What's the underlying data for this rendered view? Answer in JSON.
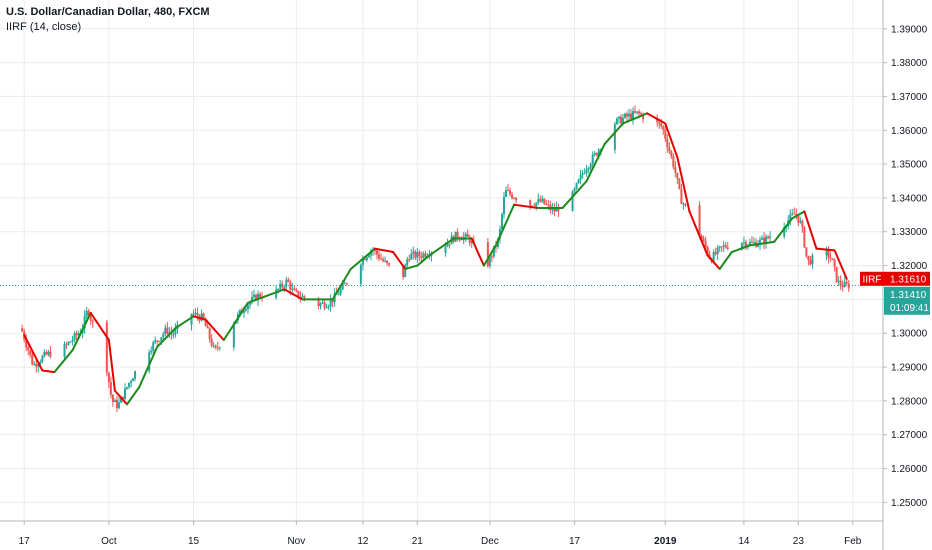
{
  "header": {
    "title": "U.S. Dollar/Canadian Dollar, 480, FXCM",
    "indicator": "IIRF (14, close)"
  },
  "colors": {
    "up": "#26a69a",
    "down": "#ef5350",
    "iirf_up": "#1b8a1b",
    "iirf_down": "#e60000",
    "price_tag": "#26a69a",
    "iirf_tag": "#e60000",
    "grid": "#e9ebef"
  },
  "chart_data": {
    "type": "candlestick",
    "symbol": "U.S. Dollar/Canadian Dollar",
    "interval": "480",
    "source": "FXCM",
    "y_ticks": [
      "1.39000",
      "1.38000",
      "1.37000",
      "1.36000",
      "1.35000",
      "1.34000",
      "1.33000",
      "1.32000",
      "1.31000",
      "1.30000",
      "1.29000",
      "1.28000",
      "1.27000",
      "1.26000",
      "1.25000"
    ],
    "ylim": [
      1.2445,
      1.3985
    ],
    "x_ticks": [
      {
        "label": "17",
        "bold": false,
        "date": "2018-09-17"
      },
      {
        "label": "Oct",
        "bold": false,
        "date": "2018-10-01"
      },
      {
        "label": "15",
        "bold": false,
        "date": "2018-10-15"
      },
      {
        "label": "Nov",
        "bold": false,
        "date": "2018-11-01"
      },
      {
        "label": "12",
        "bold": false,
        "date": "2018-11-12"
      },
      {
        "label": "21",
        "bold": false,
        "date": "2018-11-21"
      },
      {
        "label": "Dec",
        "bold": false,
        "date": "2018-12-03"
      },
      {
        "label": "17",
        "bold": false,
        "date": "2018-12-17"
      },
      {
        "label": "2019",
        "bold": true,
        "date": "2019-01-01"
      },
      {
        "label": "14",
        "bold": false,
        "date": "2019-01-14"
      },
      {
        "label": "23",
        "bold": false,
        "date": "2019-01-23"
      },
      {
        "label": "Feb",
        "bold": false,
        "date": "2019-02-01"
      }
    ],
    "price_path": [
      [
        "2018-09-17",
        1.3015
      ],
      [
        "2018-09-19",
        1.2905
      ],
      [
        "2018-09-21",
        1.2935
      ],
      [
        "2018-09-24",
        1.2955
      ],
      [
        "2018-09-27",
        1.301
      ],
      [
        "2018-09-28",
        1.307
      ],
      [
        "2018-10-01",
        1.2915
      ],
      [
        "2018-10-02",
        1.28
      ],
      [
        "2018-10-03",
        1.2785
      ],
      [
        "2018-10-05",
        1.286
      ],
      [
        "2018-10-08",
        1.295
      ],
      [
        "2018-10-11",
        1.301
      ],
      [
        "2018-10-12",
        1.2995
      ],
      [
        "2018-10-15",
        1.306
      ],
      [
        "2018-10-17",
        1.3045
      ],
      [
        "2018-10-19",
        1.2945
      ],
      [
        "2018-10-22",
        1.303
      ],
      [
        "2018-10-24",
        1.308
      ],
      [
        "2018-10-26",
        1.311
      ],
      [
        "2018-10-29",
        1.312
      ],
      [
        "2018-10-31",
        1.3155
      ],
      [
        "2018-11-01",
        1.312
      ],
      [
        "2018-11-05",
        1.3085
      ],
      [
        "2018-11-07",
        1.309
      ],
      [
        "2018-11-09",
        1.313
      ],
      [
        "2018-11-12",
        1.321
      ],
      [
        "2018-11-14",
        1.325
      ],
      [
        "2018-11-16",
        1.321
      ],
      [
        "2018-11-19",
        1.316
      ],
      [
        "2018-11-20",
        1.323
      ],
      [
        "2018-11-22",
        1.323
      ],
      [
        "2018-11-26",
        1.326
      ],
      [
        "2018-11-28",
        1.329
      ],
      [
        "2018-11-30",
        1.328
      ],
      [
        "2018-12-03",
        1.32
      ],
      [
        "2018-12-05",
        1.328
      ],
      [
        "2018-12-06",
        1.342
      ],
      [
        "2018-12-10",
        1.338
      ],
      [
        "2018-12-12",
        1.339
      ],
      [
        "2018-12-14",
        1.336
      ],
      [
        "2018-12-17",
        1.34
      ],
      [
        "2018-12-19",
        1.348
      ],
      [
        "2018-12-21",
        1.353
      ],
      [
        "2018-12-24",
        1.362
      ],
      [
        "2018-12-26",
        1.364
      ],
      [
        "2018-12-28",
        1.365
      ],
      [
        "2019-01-01",
        1.361
      ],
      [
        "2019-01-03",
        1.349
      ],
      [
        "2019-01-04",
        1.34
      ],
      [
        "2019-01-07",
        1.33
      ],
      [
        "2019-01-09",
        1.322
      ],
      [
        "2019-01-11",
        1.3255
      ],
      [
        "2019-01-14",
        1.327
      ],
      [
        "2019-01-16",
        1.3265
      ],
      [
        "2019-01-18",
        1.3275
      ],
      [
        "2019-01-21",
        1.332
      ],
      [
        "2019-01-23",
        1.3355
      ],
      [
        "2019-01-24",
        1.332
      ],
      [
        "2019-01-25",
        1.321
      ],
      [
        "2019-01-28",
        1.324
      ],
      [
        "2019-01-29",
        1.322
      ],
      [
        "2019-01-30",
        1.315
      ],
      [
        "2019-01-31",
        1.3141
      ]
    ],
    "iirf_path": [
      [
        "2018-09-17",
        1.2995
      ],
      [
        "2018-09-20",
        1.289
      ],
      [
        "2018-09-22",
        1.2885
      ],
      [
        "2018-09-25",
        1.295
      ],
      [
        "2018-09-28",
        1.306
      ],
      [
        "2018-10-01",
        1.298
      ],
      [
        "2018-10-02",
        1.283
      ],
      [
        "2018-10-04",
        1.279
      ],
      [
        "2018-10-06",
        1.284
      ],
      [
        "2018-10-09",
        1.296
      ],
      [
        "2018-10-12",
        1.3015
      ],
      [
        "2018-10-15",
        1.305
      ],
      [
        "2018-10-17",
        1.304
      ],
      [
        "2018-10-20",
        1.298
      ],
      [
        "2018-10-24",
        1.309
      ],
      [
        "2018-10-27",
        1.311
      ],
      [
        "2018-10-30",
        1.313
      ],
      [
        "2018-11-02",
        1.31
      ],
      [
        "2018-11-07",
        1.31
      ],
      [
        "2018-11-10",
        1.319
      ],
      [
        "2018-11-14",
        1.325
      ],
      [
        "2018-11-17",
        1.324
      ],
      [
        "2018-11-19",
        1.319
      ],
      [
        "2018-11-21",
        1.32
      ],
      [
        "2018-11-23",
        1.323
      ],
      [
        "2018-11-27",
        1.328
      ],
      [
        "2018-11-30",
        1.328
      ],
      [
        "2018-12-02",
        1.32
      ],
      [
        "2018-12-04",
        1.326
      ],
      [
        "2018-12-07",
        1.338
      ],
      [
        "2018-12-11",
        1.337
      ],
      [
        "2018-12-15",
        1.337
      ],
      [
        "2018-12-19",
        1.345
      ],
      [
        "2018-12-22",
        1.356
      ],
      [
        "2018-12-25",
        1.362
      ],
      [
        "2018-12-29",
        1.365
      ],
      [
        "2019-01-01",
        1.362
      ],
      [
        "2019-01-03",
        1.352
      ],
      [
        "2019-01-05",
        1.336
      ],
      [
        "2019-01-08",
        1.323
      ],
      [
        "2019-01-10",
        1.319
      ],
      [
        "2019-01-12",
        1.324
      ],
      [
        "2019-01-15",
        1.326
      ],
      [
        "2019-01-19",
        1.327
      ],
      [
        "2019-01-22",
        1.334
      ],
      [
        "2019-01-24",
        1.336
      ],
      [
        "2019-01-26",
        1.325
      ],
      [
        "2019-01-29",
        1.3245
      ],
      [
        "2019-01-31",
        1.3161
      ]
    ],
    "last_price": "1.31410",
    "iirf_value": "1.31610",
    "iirf_label": "IIRF",
    "countdown": "01:09:41",
    "grid": true
  }
}
